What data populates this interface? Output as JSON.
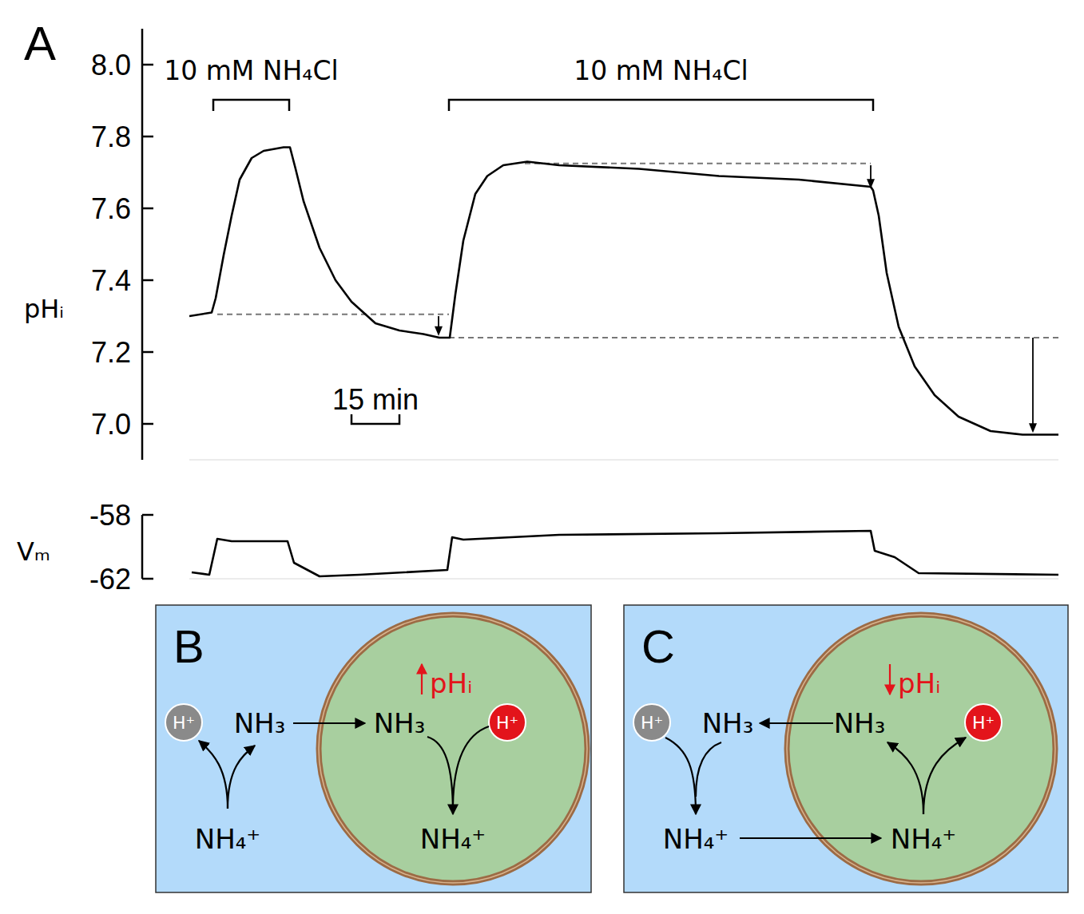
{
  "chart_data": [
    {
      "type": "line",
      "panel_label": "A",
      "y_label": "pHᵢ",
      "x": [
        0,
        7,
        8.25,
        10.75,
        13.25,
        15.75,
        19.5,
        23.25,
        29.5,
        31.5,
        33.25,
        35.75,
        40.75,
        45.75,
        50.75,
        58.25,
        65.75,
        73.25,
        78.25,
        81.5,
        83.25,
        85.75,
        89.5,
        93.25,
        98.25,
        105.75,
        115.75,
        140.75,
        165.75,
        190.75,
        213.25,
        214,
        215.75,
        218.25,
        222,
        227,
        233.25,
        240.75,
        250.75,
        260.75,
        272
      ],
      "series": [
        {
          "color": "#000000",
          "values": [
            7.3,
            7.31,
            7.35,
            7.47,
            7.58,
            7.68,
            7.74,
            7.76,
            7.77,
            7.77,
            7.71,
            7.62,
            7.49,
            7.4,
            7.34,
            7.28,
            7.26,
            7.25,
            7.24,
            7.24,
            7.36,
            7.51,
            7.64,
            7.69,
            7.72,
            7.73,
            7.72,
            7.71,
            7.69,
            7.68,
            7.66,
            7.65,
            7.58,
            7.42,
            7.27,
            7.16,
            7.08,
            7.02,
            6.98,
            6.97,
            6.97
          ]
        }
      ],
      "xlim": [
        0,
        272
      ],
      "ylim": [
        6.9,
        8.1
      ],
      "yticks": [
        {
          "value": 7,
          "label": "7.0"
        },
        7.2,
        7.4,
        7.6,
        7.8,
        {
          "value": 8,
          "label": "8.0"
        }
      ],
      "tick_labels": "y",
      "treatments": [
        {
          "label": "10 mM NH₄Cl",
          "start": 7.5,
          "end": 31.25
        },
        {
          "label": "10 mM NH₄Cl",
          "start": 81.25,
          "end": 214
        }
      ],
      "scale_bar": {
        "value": 15,
        "label": "15 min"
      },
      "reference_lines": [
        {
          "value": 7.305,
          "start": 8.75,
          "end": 81.25
        },
        {
          "value": 7.24,
          "start": 81.25,
          "end": 272
        },
        {
          "value": 7.725,
          "start": 105,
          "end": 213.25
        }
      ],
      "arrows": [
        {
          "x": 78,
          "from": 7.3,
          "to": 7.245
        },
        {
          "x": 213.25,
          "from": 7.72,
          "to": 7.655
        },
        {
          "x": 264,
          "from": 7.24,
          "to": 6.975
        }
      ]
    },
    {
      "type": "line",
      "y_label": "Vₘ",
      "x": [
        0.75,
        6.25,
        8.75,
        13.25,
        30.75,
        32.75,
        40.75,
        53.25,
        80.75,
        82.25,
        85.75,
        115.75,
        165.75,
        213.25,
        214.5,
        220.75,
        228.25,
        272
      ],
      "series": [
        {
          "color": "#000000",
          "values": [
            -61.6,
            -61.75,
            -59.5,
            -59.65,
            -59.65,
            -61,
            -61.85,
            -61.75,
            -61.45,
            -59.4,
            -59.55,
            -59.25,
            -59.15,
            -59,
            -60.25,
            -60.65,
            -61.65,
            -61.75
          ]
        }
      ],
      "xlim": [
        0,
        272
      ],
      "ylim": [
        -62,
        -58
      ],
      "yticks": [
        -58,
        -62
      ],
      "tick_labels": "y"
    }
  ],
  "diagrams": [
    {
      "label": "B",
      "direction": "up",
      "indicator": "pHᵢ",
      "outside": {
        "proton": "H⁺",
        "base": "NH₃",
        "acid": "NH₄⁺"
      },
      "inside": {
        "proton": "H⁺",
        "base": "NH₃",
        "acid": "NH₄⁺"
      }
    },
    {
      "label": "C",
      "direction": "down",
      "indicator": "pHᵢ",
      "outside": {
        "proton": "H⁺",
        "base": "NH₃",
        "acid": "NH₄⁺"
      },
      "inside": {
        "proton": "H⁺",
        "base": "NH₃",
        "acid": "NH₄⁺"
      }
    }
  ]
}
